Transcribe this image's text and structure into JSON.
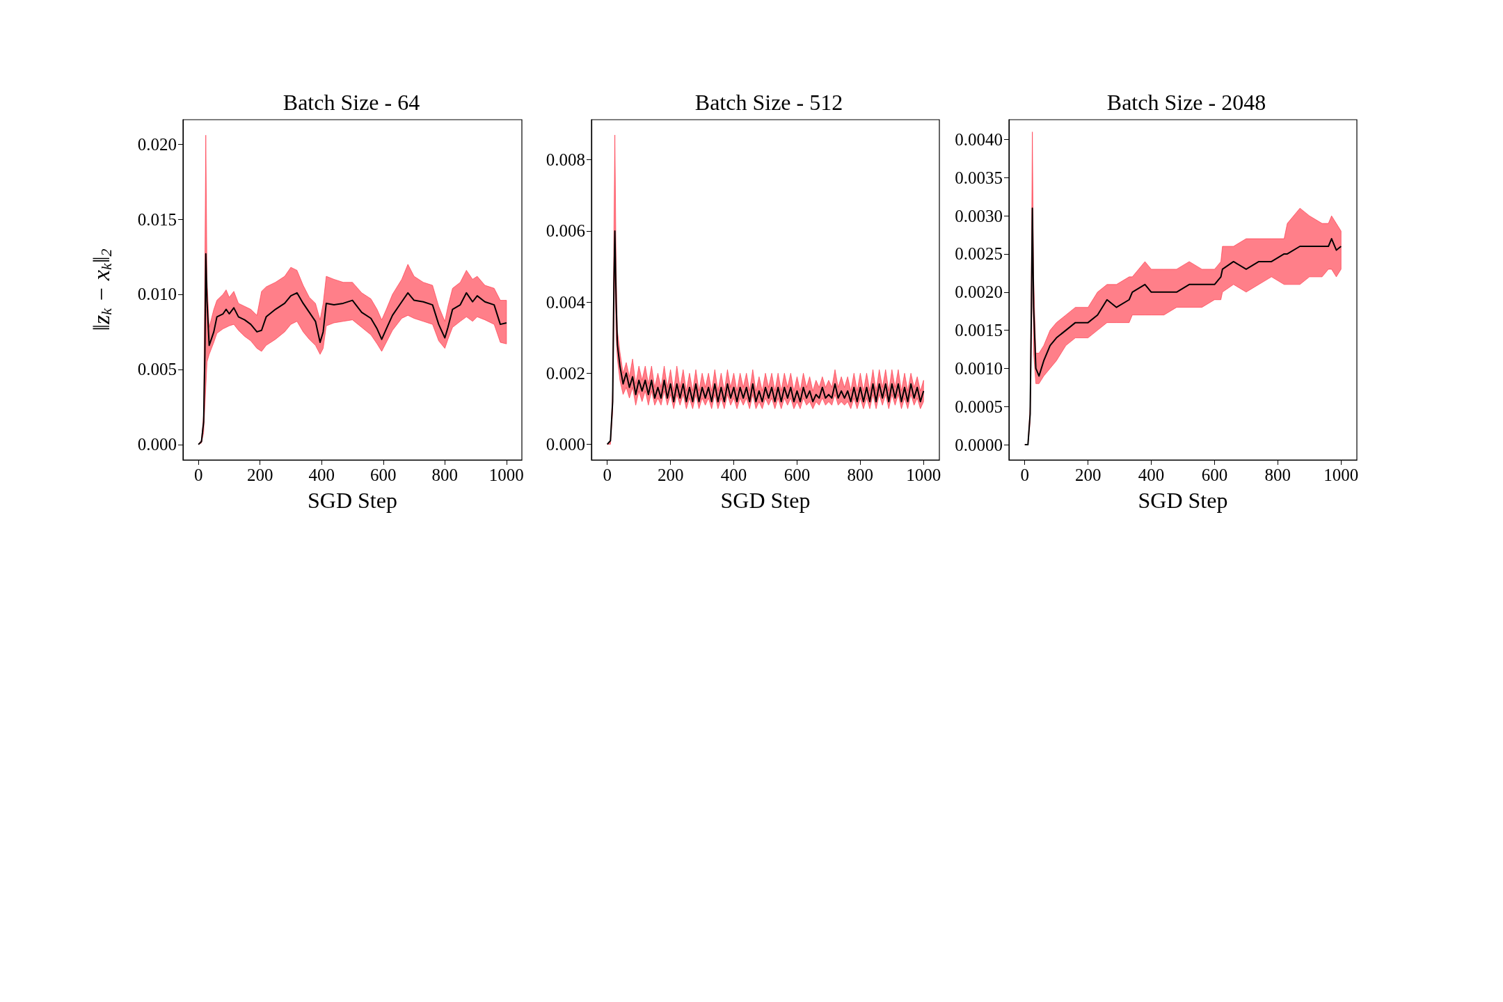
{
  "chart_data": [
    {
      "type": "line",
      "title": "Batch Size - 64",
      "xlabel": "SGD Step",
      "ylabel": "‖z$_{k}$ − x$_{k}$‖$_{2}$",
      "xlim": [
        -50,
        1050
      ],
      "ylim": [
        -0.00103,
        0.02163
      ],
      "xticks": [
        0,
        200,
        400,
        600,
        800,
        1000
      ],
      "yticks": [
        {
          "value": 0,
          "label": "0.000"
        },
        {
          "value": 0.005,
          "label": "0.005"
        },
        {
          "value": 0.01,
          "label": "0.010"
        },
        {
          "value": 0.015,
          "label": "0.015"
        },
        {
          "value": 0.02,
          "label": "0.020"
        }
      ],
      "x": [
        0,
        10,
        17,
        21,
        24,
        28,
        35,
        50,
        60,
        80,
        90,
        100,
        115,
        130,
        150,
        170,
        190,
        205,
        220,
        250,
        280,
        300,
        320,
        340,
        360,
        380,
        395,
        405,
        415,
        440,
        470,
        500,
        530,
        560,
        580,
        595,
        610,
        630,
        660,
        680,
        700,
        730,
        760,
        780,
        800,
        810,
        825,
        850,
        870,
        890,
        905,
        930,
        960,
        980,
        1000
      ],
      "series": [
        {
          "color": "#000000",
          "values": [
            0,
            0.0002,
            0.0015,
            0.006,
            0.0127,
            0.0095,
            0.0066,
            0.0075,
            0.0085,
            0.0087,
            0.009,
            0.0087,
            0.0091,
            0.0085,
            0.0083,
            0.008,
            0.0075,
            0.0076,
            0.0085,
            0.009,
            0.0094,
            0.0099,
            0.0101,
            0.0094,
            0.0088,
            0.0082,
            0.0068,
            0.0075,
            0.0094,
            0.0093,
            0.0094,
            0.0096,
            0.0088,
            0.0084,
            0.0077,
            0.007,
            0.0077,
            0.0086,
            0.0095,
            0.0101,
            0.0096,
            0.0095,
            0.0093,
            0.008,
            0.0071,
            0.0078,
            0.009,
            0.0093,
            0.0101,
            0.0095,
            0.0099,
            0.0095,
            0.0093,
            0.008,
            0.0081
          ],
          "upper": [
            0,
            0.0003,
            0.002,
            0.012,
            0.0206,
            0.011,
            0.0078,
            0.009,
            0.0096,
            0.01,
            0.0103,
            0.0098,
            0.0102,
            0.0094,
            0.0092,
            0.009,
            0.0086,
            0.0102,
            0.0105,
            0.0108,
            0.0112,
            0.0118,
            0.0116,
            0.0106,
            0.0098,
            0.0094,
            0.0083,
            0.0094,
            0.0112,
            0.011,
            0.0108,
            0.0108,
            0.0101,
            0.0097,
            0.009,
            0.0083,
            0.009,
            0.01,
            0.011,
            0.012,
            0.0112,
            0.0108,
            0.0106,
            0.0092,
            0.0082,
            0.0092,
            0.0104,
            0.0108,
            0.0116,
            0.011,
            0.0112,
            0.0106,
            0.0104,
            0.0096,
            0.0096
          ],
          "lower": [
            0,
            0.0001,
            0.0008,
            0.0025,
            0.0038,
            0.0055,
            0.006,
            0.0068,
            0.0074,
            0.0077,
            0.0078,
            0.0079,
            0.008,
            0.0076,
            0.0072,
            0.0069,
            0.0064,
            0.0062,
            0.0066,
            0.007,
            0.0075,
            0.008,
            0.0082,
            0.0075,
            0.007,
            0.0066,
            0.006,
            0.0064,
            0.0079,
            0.0081,
            0.0082,
            0.0083,
            0.0078,
            0.0073,
            0.0067,
            0.0062,
            0.0068,
            0.0076,
            0.0084,
            0.0086,
            0.0084,
            0.0082,
            0.008,
            0.0069,
            0.0064,
            0.007,
            0.0078,
            0.0082,
            0.0085,
            0.0082,
            0.0085,
            0.0083,
            0.008,
            0.0068,
            0.0067
          ]
        }
      ]
    },
    {
      "type": "line",
      "title": "Batch Size - 512",
      "xlabel": "SGD Step",
      "xlim": [
        -50,
        1050
      ],
      "ylim": [
        -0.00044,
        0.00913
      ],
      "xticks": [
        0,
        200,
        400,
        600,
        800,
        1000
      ],
      "yticks": [
        {
          "value": 0,
          "label": "0.000"
        },
        {
          "value": 0.002,
          "label": "0.002"
        },
        {
          "value": 0.004,
          "label": "0.004"
        },
        {
          "value": 0.006,
          "label": "0.006"
        },
        {
          "value": 0.008,
          "label": "0.008"
        }
      ],
      "x": [
        0,
        10,
        17,
        21,
        24,
        28,
        32,
        40,
        50,
        60,
        70,
        80,
        90,
        100,
        110,
        120,
        130,
        140,
        150,
        160,
        170,
        180,
        190,
        200,
        210,
        220,
        230,
        240,
        250,
        260,
        270,
        280,
        290,
        300,
        310,
        320,
        330,
        340,
        350,
        360,
        370,
        380,
        390,
        400,
        410,
        420,
        430,
        440,
        450,
        460,
        470,
        480,
        490,
        500,
        510,
        520,
        530,
        540,
        550,
        560,
        570,
        580,
        590,
        600,
        610,
        620,
        630,
        640,
        650,
        660,
        670,
        680,
        690,
        700,
        710,
        720,
        730,
        740,
        750,
        760,
        770,
        780,
        790,
        800,
        810,
        820,
        830,
        840,
        850,
        860,
        870,
        880,
        890,
        900,
        910,
        920,
        930,
        940,
        950,
        960,
        970,
        980,
        990,
        1000
      ],
      "series": [
        {
          "color": "#000000",
          "values": [
            0,
            0.0001,
            0.0012,
            0.0045,
            0.006,
            0.004,
            0.0028,
            0.0022,
            0.0017,
            0.002,
            0.0016,
            0.0019,
            0.0014,
            0.0018,
            0.0015,
            0.0018,
            0.0014,
            0.0018,
            0.0013,
            0.0016,
            0.0013,
            0.0018,
            0.0013,
            0.0017,
            0.0012,
            0.0017,
            0.0013,
            0.0017,
            0.0012,
            0.0016,
            0.0012,
            0.0017,
            0.0012,
            0.0016,
            0.0013,
            0.0016,
            0.0012,
            0.0017,
            0.0012,
            0.0016,
            0.0012,
            0.0017,
            0.0013,
            0.0016,
            0.0012,
            0.0016,
            0.0013,
            0.0016,
            0.0012,
            0.0017,
            0.0012,
            0.0015,
            0.0012,
            0.0016,
            0.0013,
            0.0016,
            0.0012,
            0.0016,
            0.0012,
            0.0016,
            0.0013,
            0.0016,
            0.0012,
            0.0015,
            0.0012,
            0.0016,
            0.0013,
            0.0015,
            0.0012,
            0.0014,
            0.0013,
            0.0016,
            0.0013,
            0.0014,
            0.0013,
            0.0017,
            0.0013,
            0.0015,
            0.0013,
            0.0015,
            0.0012,
            0.0016,
            0.0012,
            0.0016,
            0.0012,
            0.0016,
            0.0012,
            0.0017,
            0.0012,
            0.0017,
            0.0013,
            0.0017,
            0.0012,
            0.0017,
            0.0013,
            0.0017,
            0.0012,
            0.0016,
            0.0012,
            0.0017,
            0.0013,
            0.0016,
            0.0012,
            0.0015
          ],
          "upper": [
            0,
            0.0001,
            0.0015,
            0.006,
            0.0087,
            0.005,
            0.0032,
            0.0026,
            0.002,
            0.0023,
            0.0019,
            0.0024,
            0.0017,
            0.0022,
            0.0018,
            0.0022,
            0.0017,
            0.0022,
            0.0016,
            0.002,
            0.0016,
            0.0022,
            0.0016,
            0.0021,
            0.0015,
            0.0022,
            0.0016,
            0.0021,
            0.0015,
            0.002,
            0.0015,
            0.0021,
            0.0015,
            0.002,
            0.0016,
            0.002,
            0.0015,
            0.0021,
            0.0015,
            0.002,
            0.0015,
            0.0021,
            0.0016,
            0.002,
            0.0015,
            0.002,
            0.0016,
            0.002,
            0.0015,
            0.0021,
            0.0015,
            0.0019,
            0.0015,
            0.002,
            0.0016,
            0.002,
            0.0015,
            0.002,
            0.0015,
            0.002,
            0.0016,
            0.002,
            0.0015,
            0.0019,
            0.0015,
            0.002,
            0.0016,
            0.0019,
            0.0015,
            0.0018,
            0.0016,
            0.0019,
            0.0016,
            0.0018,
            0.0016,
            0.0021,
            0.0016,
            0.0019,
            0.0016,
            0.0019,
            0.0015,
            0.002,
            0.0015,
            0.002,
            0.0015,
            0.002,
            0.0015,
            0.0021,
            0.0015,
            0.0021,
            0.0016,
            0.0021,
            0.0015,
            0.0021,
            0.0016,
            0.0021,
            0.0015,
            0.002,
            0.0015,
            0.002,
            0.0016,
            0.0019,
            0.0015,
            0.0018
          ],
          "lower": [
            0,
            0,
            0.0009,
            0.0035,
            0.005,
            0.003,
            0.0024,
            0.0018,
            0.0014,
            0.0016,
            0.0013,
            0.0016,
            0.0011,
            0.0015,
            0.0012,
            0.0015,
            0.0011,
            0.0015,
            0.0011,
            0.0013,
            0.0011,
            0.0015,
            0.0011,
            0.0014,
            0.001,
            0.0014,
            0.0011,
            0.0014,
            0.001,
            0.0013,
            0.001,
            0.0014,
            0.001,
            0.0013,
            0.0011,
            0.0013,
            0.001,
            0.0014,
            0.001,
            0.0013,
            0.001,
            0.0014,
            0.0011,
            0.0013,
            0.001,
            0.0013,
            0.0011,
            0.0013,
            0.001,
            0.0014,
            0.001,
            0.0012,
            0.001,
            0.0013,
            0.0011,
            0.0013,
            0.001,
            0.0013,
            0.001,
            0.0013,
            0.0011,
            0.0013,
            0.001,
            0.0012,
            0.001,
            0.0013,
            0.0011,
            0.0012,
            0.001,
            0.0012,
            0.0011,
            0.0013,
            0.0011,
            0.0012,
            0.0011,
            0.0014,
            0.0011,
            0.0012,
            0.0011,
            0.0012,
            0.001,
            0.0013,
            0.001,
            0.0013,
            0.001,
            0.0013,
            0.001,
            0.0014,
            0.001,
            0.0014,
            0.0011,
            0.0014,
            0.001,
            0.0014,
            0.0011,
            0.0014,
            0.001,
            0.0013,
            0.001,
            0.0014,
            0.0011,
            0.0013,
            0.001,
            0.0012
          ]
        }
      ]
    },
    {
      "type": "line",
      "title": "Batch Size - 2048",
      "xlabel": "SGD Step",
      "xlim": [
        -50,
        1050
      ],
      "ylim": [
        -0.0002,
        0.00426
      ],
      "xticks": [
        0,
        200,
        400,
        600,
        800,
        1000
      ],
      "yticks": [
        {
          "value": 0,
          "label": "0.0000"
        },
        {
          "value": 0.0005,
          "label": "0.0005"
        },
        {
          "value": 0.001,
          "label": "0.0010"
        },
        {
          "value": 0.0015,
          "label": "0.0015"
        },
        {
          "value": 0.002,
          "label": "0.0020"
        },
        {
          "value": 0.0025,
          "label": "0.0025"
        },
        {
          "value": 0.003,
          "label": "0.0030"
        },
        {
          "value": 0.0035,
          "label": "0.0035"
        },
        {
          "value": 0.004,
          "label": "0.0040"
        }
      ],
      "x": [
        0,
        10,
        17,
        21,
        24,
        28,
        35,
        45,
        60,
        80,
        100,
        130,
        160,
        200,
        230,
        260,
        290,
        330,
        340,
        380,
        400,
        440,
        480,
        520,
        560,
        600,
        620,
        625,
        660,
        700,
        740,
        780,
        820,
        830,
        870,
        900,
        940,
        960,
        970,
        985,
        1000
      ],
      "series": [
        {
          "color": "#000000",
          "values": [
            0,
            0,
            0.0004,
            0.0018,
            0.0031,
            0.0018,
            0.001,
            0.0009,
            0.0011,
            0.0013,
            0.0014,
            0.0015,
            0.0016,
            0.0016,
            0.0017,
            0.0019,
            0.0018,
            0.0019,
            0.002,
            0.0021,
            0.002,
            0.002,
            0.002,
            0.0021,
            0.0021,
            0.0021,
            0.0022,
            0.0023,
            0.0024,
            0.0023,
            0.0024,
            0.0024,
            0.0025,
            0.0025,
            0.0026,
            0.0026,
            0.0026,
            0.0026,
            0.0027,
            0.00255,
            0.0026
          ],
          "upper": [
            0,
            0,
            0.0005,
            0.0024,
            0.0041,
            0.0022,
            0.0012,
            0.0012,
            0.0013,
            0.0015,
            0.0016,
            0.0017,
            0.0018,
            0.0018,
            0.002,
            0.0021,
            0.0021,
            0.0022,
            0.0022,
            0.0024,
            0.0023,
            0.0023,
            0.0023,
            0.0024,
            0.0023,
            0.0023,
            0.0024,
            0.0026,
            0.0026,
            0.0027,
            0.0027,
            0.0027,
            0.0027,
            0.0029,
            0.0031,
            0.003,
            0.0029,
            0.0029,
            0.003,
            0.0029,
            0.0028
          ],
          "lower": [
            0,
            0,
            0.0003,
            0.0014,
            0.0028,
            0.0012,
            0.0008,
            0.0008,
            0.0009,
            0.001,
            0.0011,
            0.0013,
            0.0014,
            0.0014,
            0.0015,
            0.0016,
            0.0016,
            0.0016,
            0.0017,
            0.0017,
            0.0017,
            0.0017,
            0.0018,
            0.0018,
            0.0018,
            0.0019,
            0.0019,
            0.002,
            0.0021,
            0.002,
            0.0021,
            0.0022,
            0.0021,
            0.0021,
            0.0021,
            0.0022,
            0.0022,
            0.0023,
            0.0023,
            0.0022,
            0.0023
          ]
        }
      ]
    }
  ]
}
